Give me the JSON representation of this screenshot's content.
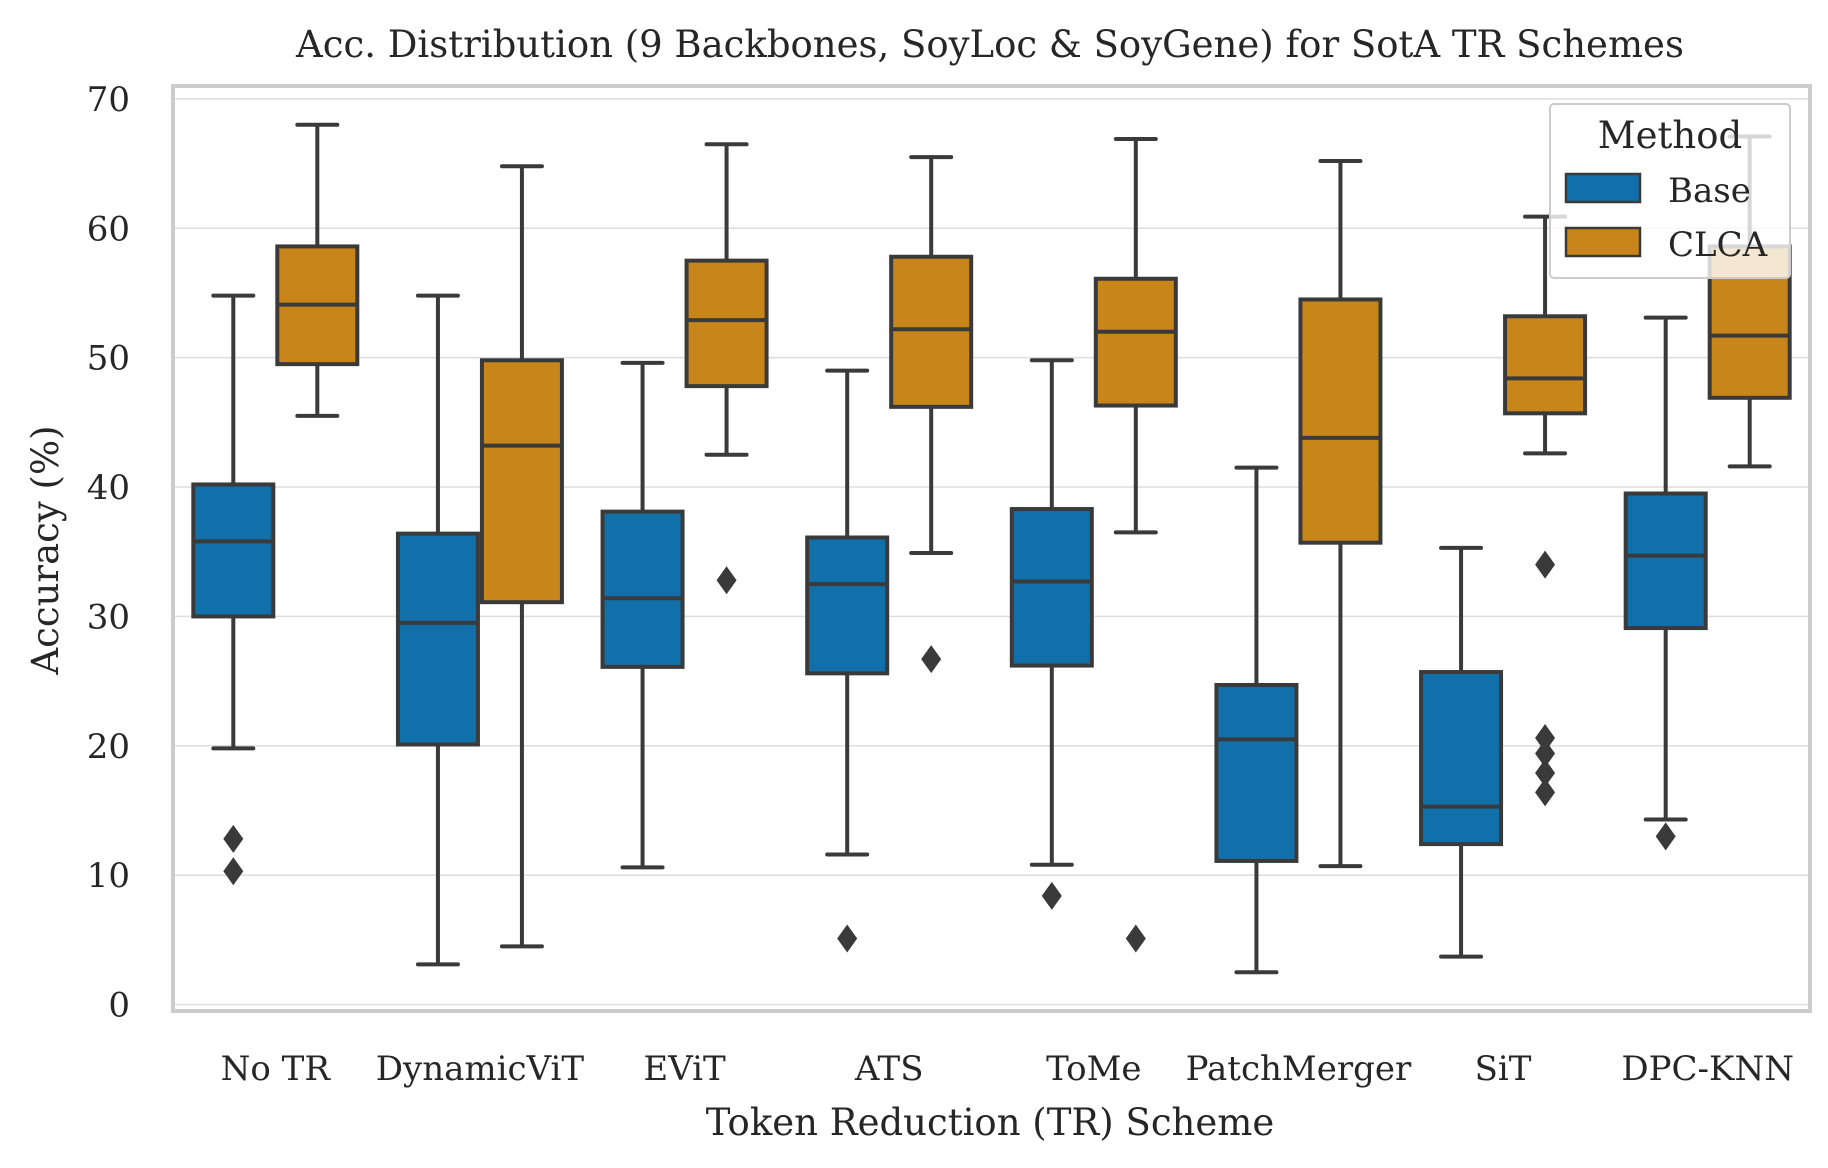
{
  "chart_data": {
    "type": "box",
    "title": "Acc. Distribution (9 Backbones, SoyLoc & SoyGene) for SotA TR Schemes",
    "xlabel": "Token Reduction (TR) Scheme",
    "ylabel": "Accuracy (%)",
    "ylim": [
      -0.5,
      71
    ],
    "yticks": [
      0,
      10,
      20,
      30,
      40,
      50,
      60,
      70
    ],
    "grid": "horizontal",
    "categories": [
      "No TR",
      "DynamicViT",
      "EViT",
      "ATS",
      "ToMe",
      "PatchMerger",
      "SiT",
      "DPC-KNN"
    ],
    "legend": {
      "title": "Method",
      "position": "top-right",
      "entries": [
        "Base",
        "CLCA"
      ]
    },
    "colors": {
      "Base": "#1170aa",
      "CLCA": "#c8861a",
      "outline": "#3a3a3a"
    },
    "series": [
      {
        "name": "Base",
        "boxes": [
          {
            "whisker_low": 19.8,
            "q1": 30.0,
            "median": 35.8,
            "q3": 40.2,
            "whisker_high": 54.8,
            "outliers": [
              12.8,
              10.3
            ]
          },
          {
            "whisker_low": 3.1,
            "q1": 20.1,
            "median": 29.5,
            "q3": 36.4,
            "whisker_high": 54.8,
            "outliers": []
          },
          {
            "whisker_low": 10.6,
            "q1": 26.1,
            "median": 31.4,
            "q3": 38.1,
            "whisker_high": 49.6,
            "outliers": []
          },
          {
            "whisker_low": 11.6,
            "q1": 25.6,
            "median": 32.5,
            "q3": 36.1,
            "whisker_high": 49.0,
            "outliers": [
              5.1
            ]
          },
          {
            "whisker_low": 10.8,
            "q1": 26.2,
            "median": 32.7,
            "q3": 38.3,
            "whisker_high": 49.8,
            "outliers": [
              8.4
            ]
          },
          {
            "whisker_low": 2.5,
            "q1": 11.1,
            "median": 20.5,
            "q3": 24.7,
            "whisker_high": 41.5,
            "outliers": []
          },
          {
            "whisker_low": 3.7,
            "q1": 12.4,
            "median": 15.3,
            "q3": 25.7,
            "whisker_high": 35.3,
            "outliers": []
          },
          {
            "whisker_low": 14.3,
            "q1": 29.1,
            "median": 34.7,
            "q3": 39.5,
            "whisker_high": 53.1,
            "outliers": [
              13.0
            ]
          }
        ]
      },
      {
        "name": "CLCA",
        "boxes": [
          {
            "whisker_low": 45.5,
            "q1": 49.5,
            "median": 54.1,
            "q3": 58.6,
            "whisker_high": 68.0,
            "outliers": []
          },
          {
            "whisker_low": 4.5,
            "q1": 31.1,
            "median": 43.2,
            "q3": 49.8,
            "whisker_high": 64.8,
            "outliers": []
          },
          {
            "whisker_low": 42.5,
            "q1": 47.8,
            "median": 52.9,
            "q3": 57.5,
            "whisker_high": 66.5,
            "outliers": [
              32.8
            ]
          },
          {
            "whisker_low": 34.9,
            "q1": 46.2,
            "median": 52.2,
            "q3": 57.8,
            "whisker_high": 65.5,
            "outliers": [
              26.7
            ]
          },
          {
            "whisker_low": 36.5,
            "q1": 46.3,
            "median": 52.0,
            "q3": 56.1,
            "whisker_high": 66.9,
            "outliers": [
              5.1
            ]
          },
          {
            "whisker_low": 10.7,
            "q1": 35.7,
            "median": 43.8,
            "q3": 54.5,
            "whisker_high": 65.2,
            "outliers": []
          },
          {
            "whisker_low": 42.6,
            "q1": 45.7,
            "median": 48.4,
            "q3": 53.2,
            "whisker_high": 60.9,
            "outliers": [
              34.0,
              20.6,
              19.4,
              17.9,
              16.4
            ]
          },
          {
            "whisker_low": 41.6,
            "q1": 46.9,
            "median": 51.7,
            "q3": 58.6,
            "whisker_high": 67.1,
            "outliers": []
          }
        ]
      }
    ]
  }
}
